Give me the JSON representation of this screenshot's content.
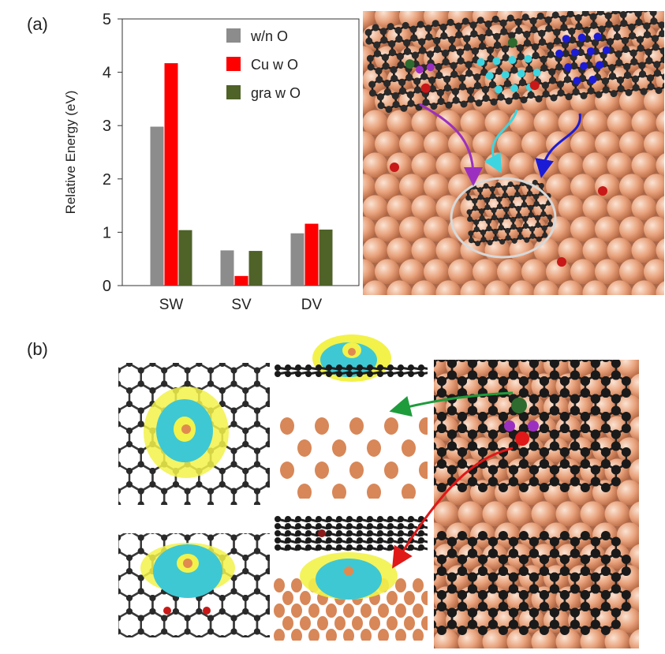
{
  "panels": {
    "a": "(a)",
    "b": "(b)"
  },
  "chart_data": {
    "type": "bar",
    "categories": [
      "SW",
      "SV",
      "DV"
    ],
    "series": [
      {
        "name": "w/n O",
        "color": "#8c8c8c",
        "values": [
          2.98,
          0.66,
          0.98
        ]
      },
      {
        "name": "Cu w O",
        "color": "#ff0000",
        "values": [
          4.17,
          0.18,
          1.16
        ]
      },
      {
        "name": "gra w O",
        "color": "#4f6228",
        "values": [
          1.04,
          0.65,
          1.05
        ]
      }
    ],
    "ylabel": "Relative Energy   (eV)",
    "ylim": [
      0,
      5
    ],
    "yticks": [
      "0",
      "1",
      "2",
      "3",
      "4",
      "5"
    ],
    "legend_position": "top-right",
    "grid": false
  },
  "colors": {
    "copper": "#e8a27c",
    "carbon": "#2a2a2a",
    "cyan": "#3dd6e0",
    "blue": "#1b1bd6",
    "purple": "#9b30c0",
    "green": "#2e6b2e",
    "oxygen": "#c81818",
    "density_yellow": "#f2f24a",
    "density_cyan": "#3ec8d4"
  }
}
